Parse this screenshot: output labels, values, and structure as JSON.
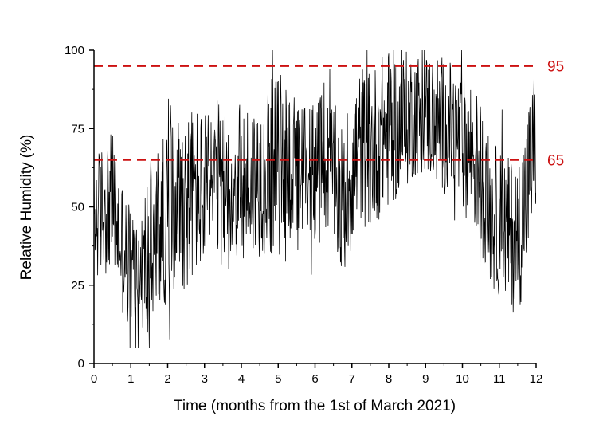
{
  "chart_data": {
    "type": "line",
    "xlabel": "Time (months from the 1st of March 2021)",
    "ylabel": "Relative Humidity (%)",
    "xlim": [
      0,
      12
    ],
    "ylim": [
      0,
      100
    ],
    "x_ticks": [
      "0",
      "1",
      "2",
      "3",
      "4",
      "5",
      "6",
      "7",
      "8",
      "9",
      "10",
      "11",
      "12"
    ],
    "y_ticks": [
      "0",
      "25",
      "50",
      "75",
      "100"
    ],
    "grid": false,
    "line_color": "#000000",
    "reference_lines": [
      {
        "value": 95,
        "label": "95",
        "color": "#cc1111",
        "style": "dashed"
      },
      {
        "value": 65,
        "label": "65",
        "color": "#cc1111",
        "style": "dashed"
      }
    ],
    "series": [
      {
        "x": [
          0,
          0.25,
          0.5,
          0.75,
          1.0,
          1.25,
          1.5,
          1.75,
          2.0,
          2.25,
          2.5,
          2.75,
          3.0,
          3.25,
          3.5,
          3.75,
          4.0,
          4.25,
          4.5,
          4.75,
          5.0,
          5.25,
          5.5,
          5.75,
          6.0,
          6.25,
          6.5,
          6.75,
          7.0,
          7.25,
          7.5,
          7.75,
          8.0,
          8.25,
          8.5,
          8.75,
          9.0,
          9.25,
          9.5,
          9.75,
          10.0,
          10.25,
          10.5,
          10.75,
          11.0,
          11.25,
          11.5,
          11.75,
          12.0
        ],
        "mean": [
          45,
          50,
          52,
          38,
          30,
          28,
          35,
          42,
          48,
          55,
          52,
          55,
          54,
          58,
          55,
          56,
          57,
          58,
          60,
          62,
          63,
          66,
          58,
          62,
          63,
          62,
          60,
          50,
          62,
          70,
          68,
          72,
          75,
          76,
          78,
          80,
          80,
          78,
          76,
          74,
          70,
          68,
          60,
          48,
          45,
          42,
          40,
          55,
          72
        ],
        "spread": [
          20,
          22,
          22,
          22,
          22,
          20,
          30,
          28,
          28,
          26,
          30,
          28,
          26,
          28,
          26,
          26,
          26,
          26,
          26,
          28,
          30,
          28,
          24,
          24,
          24,
          24,
          24,
          26,
          26,
          26,
          26,
          26,
          26,
          24,
          22,
          20,
          20,
          22,
          22,
          22,
          22,
          24,
          24,
          24,
          24,
          24,
          26,
          26,
          26
        ],
        "samples_per_month": 90
      }
    ]
  }
}
